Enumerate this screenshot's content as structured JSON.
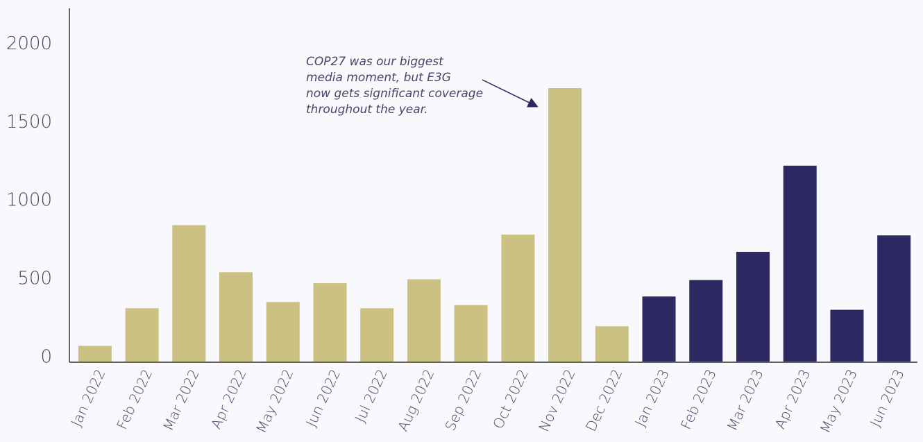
{
  "chart_data": {
    "type": "bar",
    "categories": [
      "Jan 2022",
      "Feb 2022",
      "Mar 2022",
      "Apr 2022",
      "May 2022",
      "Jun 2022",
      "Jul 2022",
      "Aug 2022",
      "Sep 2022",
      "Oct 2022",
      "Nov 2022",
      "Dec 2022",
      "Jan 2023",
      "Feb 2023",
      "Mar 2023",
      "Apr 2023",
      "May 2023",
      "Jun 2023"
    ],
    "values": [
      100,
      340,
      870,
      570,
      380,
      500,
      340,
      525,
      360,
      810,
      1745,
      225,
      415,
      520,
      700,
      1250,
      330,
      805
    ],
    "colors": [
      "#cbc182",
      "#cbc182",
      "#cbc182",
      "#cbc182",
      "#cbc182",
      "#cbc182",
      "#cbc182",
      "#cbc182",
      "#cbc182",
      "#cbc182",
      "#cbc182",
      "#cbc182",
      "#2b2862",
      "#2b2862",
      "#2b2862",
      "#2b2862",
      "#2b2862",
      "#2b2862"
    ],
    "ylim": [
      0,
      2250
    ],
    "yticks": [
      0,
      500,
      1000,
      1500,
      2000
    ],
    "grid": false,
    "annotation": [
      "COP27 was our biggest",
      "media moment, but E3G",
      "now gets significant coverage",
      "throughout the year."
    ]
  }
}
